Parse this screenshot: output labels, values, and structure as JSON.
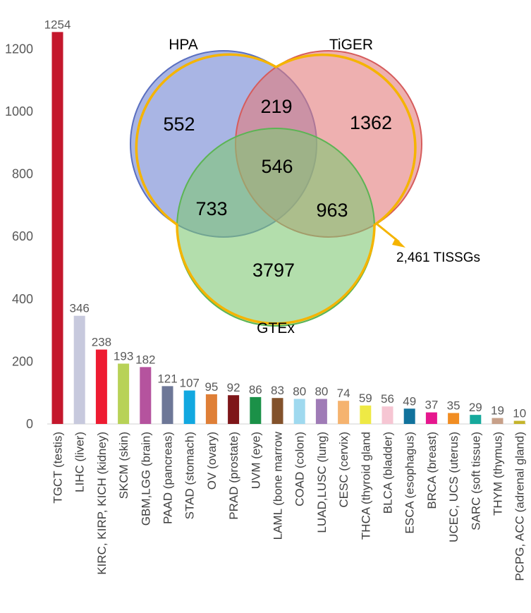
{
  "chart_data": [
    {
      "type": "bar",
      "title": "",
      "xlabel": "",
      "ylabel": "",
      "ylim": [
        0,
        1300
      ],
      "yticks": [
        0,
        200,
        400,
        600,
        800,
        1000,
        1200
      ],
      "grid": false,
      "categories": [
        "TGCT (testis)",
        "LIHC (liver)",
        "KIRC, KIRP, KICH (kidney)",
        "SKCM (skin)",
        "GBM,LGG (brain)",
        "PAAD (pancreas)",
        "STAD (stomach)",
        "OV (ovary)",
        "PRAD (prostate)",
        "UVM (eye)",
        "LAML (bone marrow",
        "COAD (colon)",
        "LUAD,LUSC (lung)",
        "CESC (cervix)",
        "THCA (thyroid gland",
        "BLCA (bladder)",
        "ESCA (esophagus)",
        "BRCA (breast)",
        "UCEC, UCS (uterus)",
        "SARC (soft tissue)",
        "THYM (thymus)",
        "PCPG, ACC (adrenal gland)"
      ],
      "values": [
        1254,
        346,
        238,
        193,
        182,
        121,
        107,
        95,
        92,
        86,
        83,
        80,
        80,
        74,
        59,
        56,
        49,
        37,
        35,
        29,
        19,
        10
      ],
      "colors": [
        "#c4172c",
        "#c7c9dd",
        "#ee1b31",
        "#b8d257",
        "#b5539e",
        "#6d7797",
        "#12a8e0",
        "#df7f37",
        "#7e1619",
        "#1b9148",
        "#83522b",
        "#9fd9ef",
        "#9f7bb6",
        "#f5b36f",
        "#eee945",
        "#f6c6d3",
        "#11729c",
        "#e6178e",
        "#f18d22",
        "#16a99c",
        "#c7a089",
        "#c4b42b"
      ]
    },
    {
      "type": "venn",
      "sets": [
        {
          "label": "HPA",
          "color": "#6f84d2",
          "stroke": "#5a6fc0"
        },
        {
          "label": "TiGER",
          "color": "#e27b7b",
          "stroke": "#d65c5c"
        },
        {
          "label": "GTEx",
          "color": "#80c875",
          "stroke": "#5cb454"
        }
      ],
      "regions": {
        "hpa_only": "552",
        "tiger_only": "1362",
        "gtex_only": "3797",
        "hpa_tiger": "219",
        "hpa_gtex": "733",
        "tiger_gtex": "963",
        "all": "546"
      },
      "annotation": "2,461 TISSGs",
      "highlight_color": "#f5b400"
    }
  ]
}
